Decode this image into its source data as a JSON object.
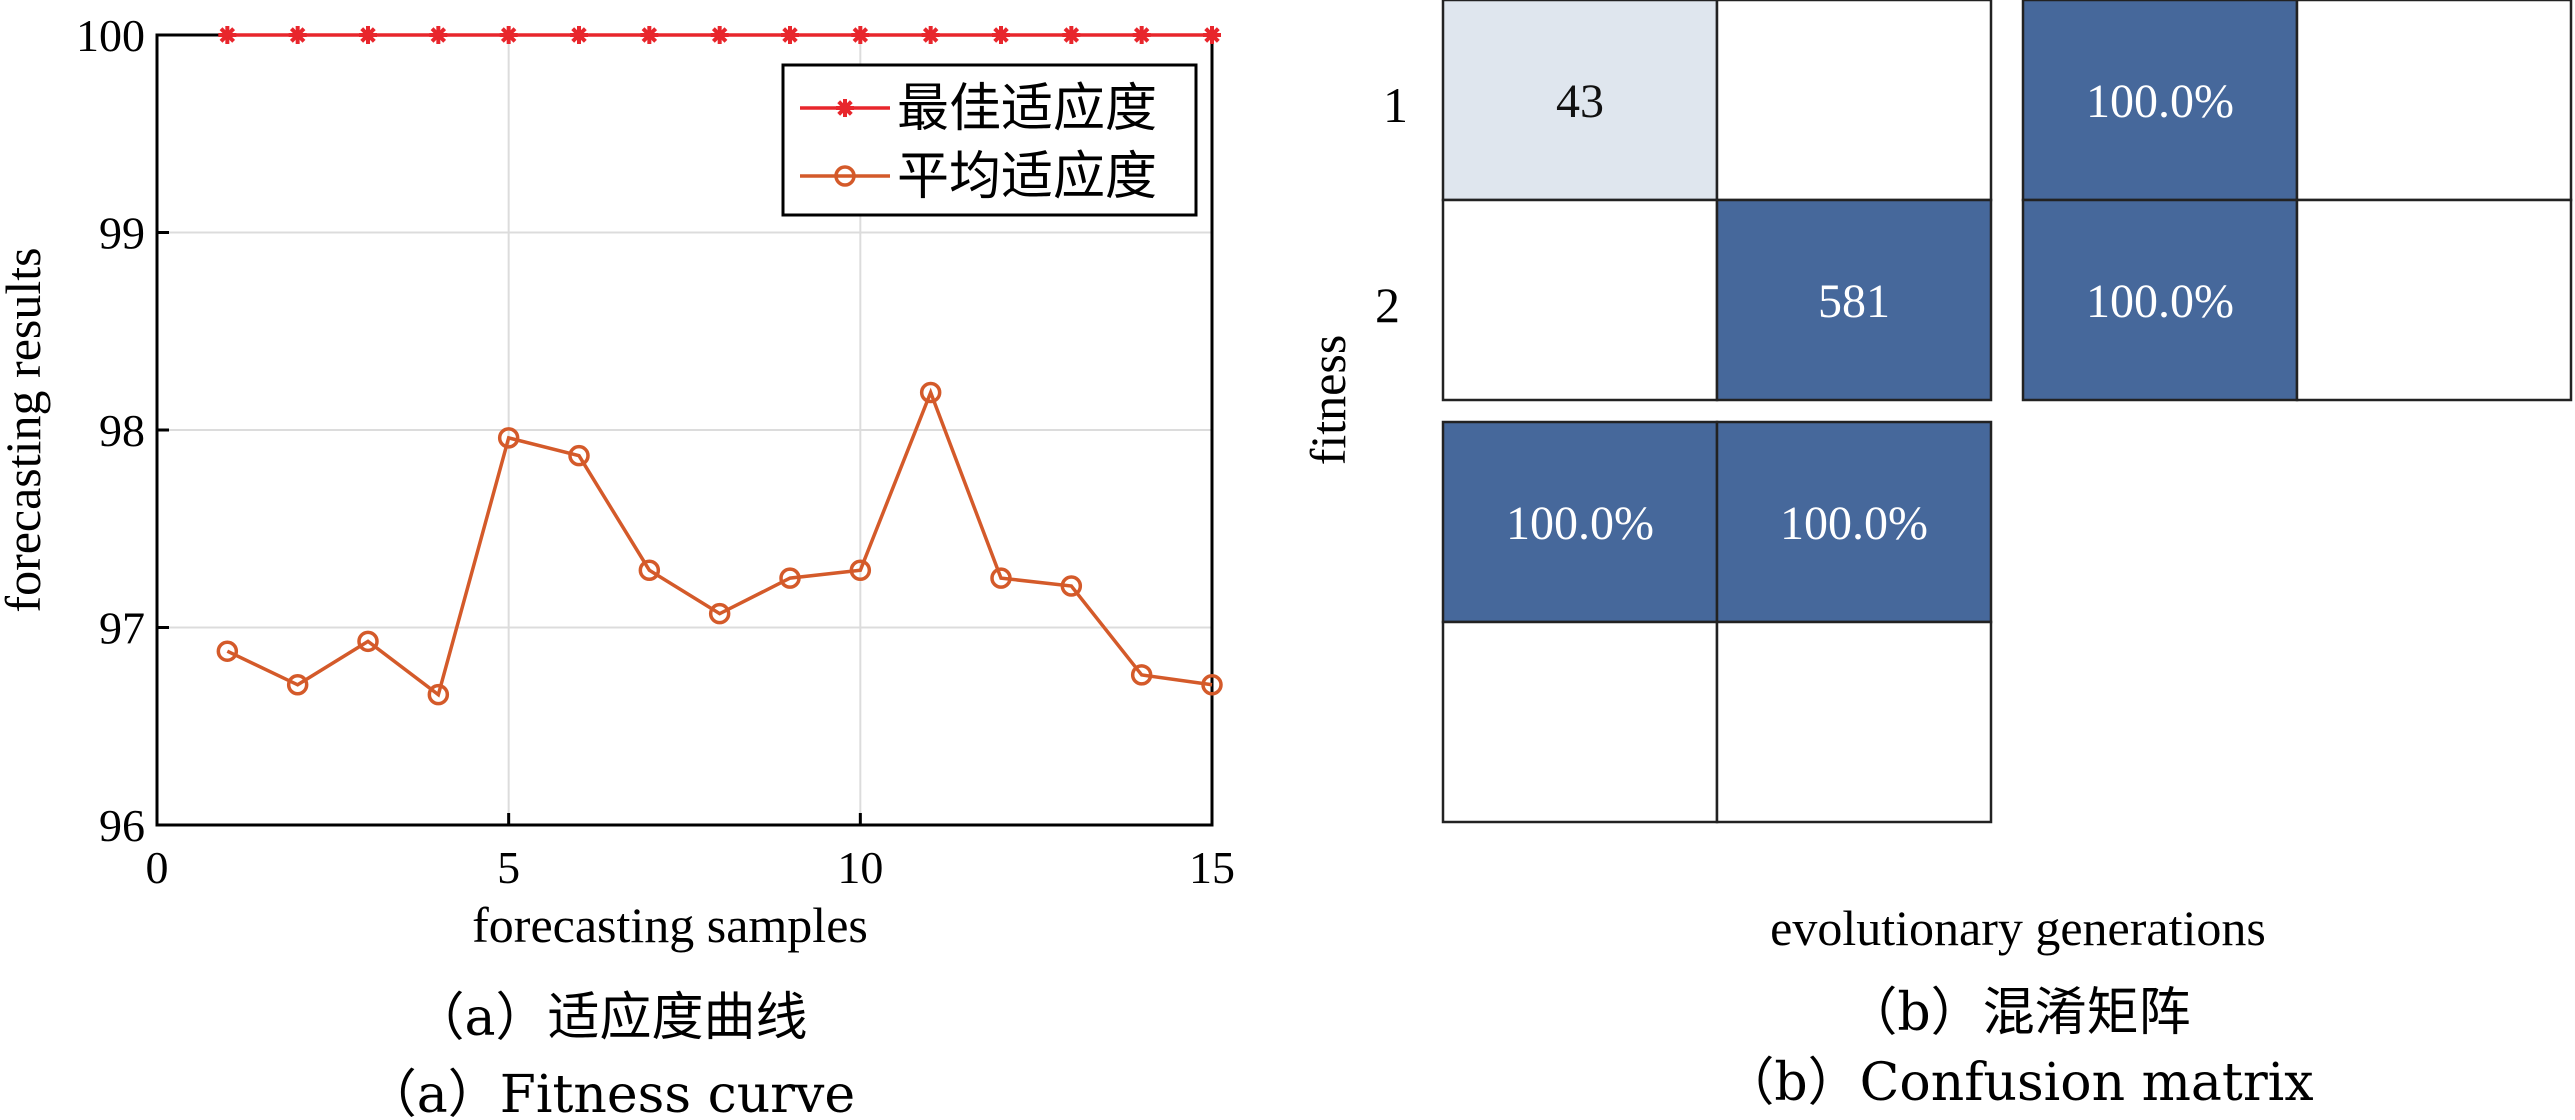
{
  "chart_data": [
    {
      "type": "line",
      "title": "",
      "xlabel": "forecasting samples",
      "ylabel": "forecasting results",
      "xlim": [
        0,
        15
      ],
      "ylim": [
        96,
        100
      ],
      "xticks": [
        "0",
        "5",
        "10",
        "15"
      ],
      "yticks": [
        "96",
        "97",
        "98",
        "99",
        "100"
      ],
      "grid": true,
      "legend_position": "top-right",
      "x": [
        1,
        2,
        3,
        4,
        5,
        6,
        7,
        8,
        9,
        10,
        11,
        12,
        13,
        14,
        15
      ],
      "series": [
        {
          "name": "最佳适应度",
          "color": "#e8262c",
          "marker": "asterisk",
          "values": [
            100,
            100,
            100,
            100,
            100,
            100,
            100,
            100,
            100,
            100,
            100,
            100,
            100,
            100,
            100
          ]
        },
        {
          "name": "平均适应度",
          "color": "#d45a2a",
          "marker": "circle",
          "values": [
            96.88,
            96.71,
            96.93,
            96.66,
            97.96,
            97.87,
            97.29,
            97.07,
            97.25,
            97.29,
            98.19,
            97.25,
            97.21,
            96.76,
            96.71
          ]
        }
      ],
      "caption_cn": "（a）适应度曲线",
      "caption_en": "（a）Fitness curve"
    },
    {
      "type": "heatmap",
      "title": "",
      "xlabel": "evolutionary generations",
      "ylabel": "fitness",
      "row_labels": [
        "1",
        "2"
      ],
      "colors": {
        "dark": "#46689b",
        "light": "#dfe6ee",
        "empty": "#ffffff"
      },
      "cells": [
        {
          "row": 1,
          "col": 1,
          "label": "43",
          "shade": "light"
        },
        {
          "row": 1,
          "col": 2,
          "label": "",
          "shade": "empty"
        },
        {
          "row": 2,
          "col": 1,
          "label": "",
          "shade": "empty"
        },
        {
          "row": 2,
          "col": 2,
          "label": "581",
          "shade": "dark"
        }
      ],
      "row_summary": [
        {
          "row": 1,
          "label": "100.0%",
          "shade": "dark"
        },
        {
          "row": 2,
          "label": "100.0%",
          "shade": "dark"
        }
      ],
      "col_summary": [
        {
          "col": 1,
          "label": "100.0%",
          "shade": "dark"
        },
        {
          "col": 2,
          "label": "100.0%",
          "shade": "dark"
        }
      ],
      "caption_cn": "（b）混淆矩阵",
      "caption_en": "（b）Confusion matrix"
    }
  ]
}
